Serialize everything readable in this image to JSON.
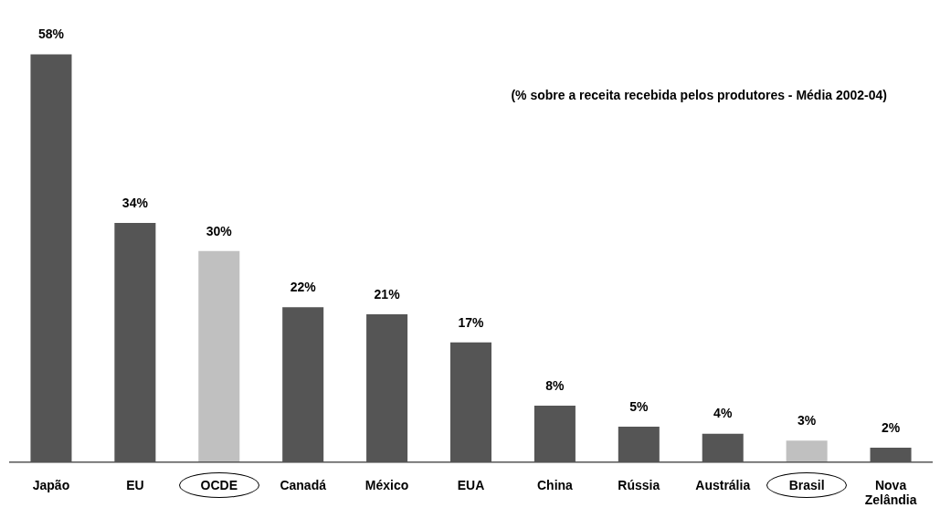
{
  "chart_data": {
    "type": "bar",
    "categories": [
      "Japão",
      "EU",
      "OCDE",
      "Canadá",
      "México",
      "EUA",
      "China",
      "Rússia",
      "Austrália",
      "Brasil",
      "Nova Zelândia"
    ],
    "values": [
      58,
      34,
      30,
      22,
      21,
      17,
      8,
      5,
      4,
      3,
      2
    ],
    "colors": [
      "#555555",
      "#555555",
      "#c0c0c0",
      "#555555",
      "#555555",
      "#555555",
      "#555555",
      "#555555",
      "#555555",
      "#c0c0c0",
      "#555555"
    ],
    "value_labels": [
      "58%",
      "34%",
      "30%",
      "22%",
      "21%",
      "17%",
      "8%",
      "5%",
      "4%",
      "3%",
      "2%"
    ],
    "annotations": [
      "(% sobre a receita recebida pelos produtores - Média 2002-04)"
    ],
    "grid": false,
    "legend": false
  }
}
